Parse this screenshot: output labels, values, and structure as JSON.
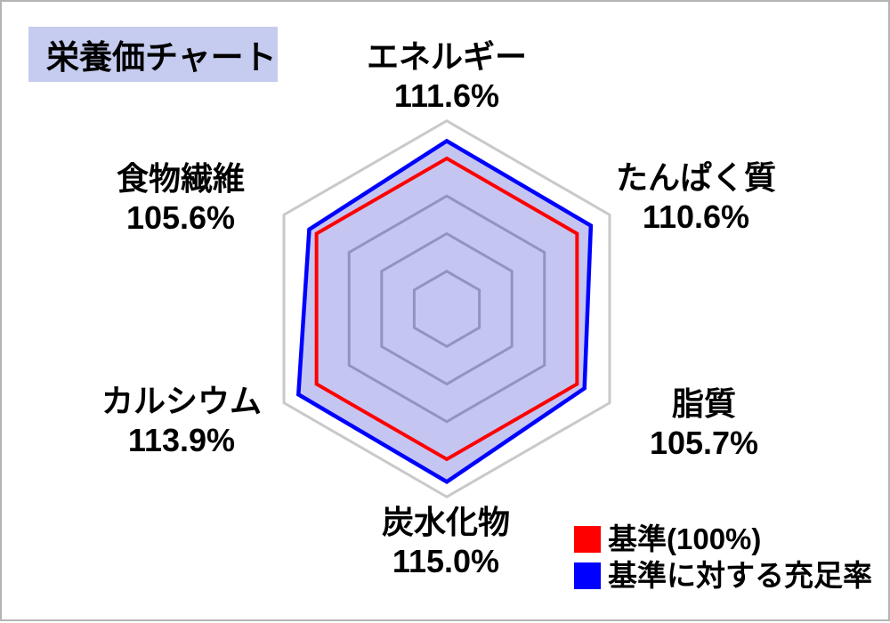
{
  "title": "栄養価チャート",
  "colors": {
    "title_bg": "#c6ccef",
    "fill": "#c5c5f2",
    "grid_inner": "#9393c0",
    "grid_outer": "#c9c9c9",
    "standard": "#ff0000",
    "fulfillment": "#0000ff"
  },
  "labels": [
    {
      "name": "エネルギー",
      "value": "111.6%"
    },
    {
      "name": "たんぱく質",
      "value": "110.6%"
    },
    {
      "name": "脂質",
      "value": "105.7%"
    },
    {
      "name": "炭水化物",
      "value": "115.0%"
    },
    {
      "name": "カルシウム",
      "value": "113.9%"
    },
    {
      "name": "食物繊維",
      "value": "105.6%"
    }
  ],
  "legend": {
    "items": [
      {
        "label": "基準(100%)",
        "color": "#ff0000"
      },
      {
        "label": "基準に対する充足率",
        "color": "#0000ff"
      }
    ]
  },
  "chart_data": {
    "type": "radar",
    "title": "栄養価チャート",
    "categories": [
      "エネルギー",
      "たんぱく質",
      "脂質",
      "炭水化物",
      "カルシウム",
      "食物繊維"
    ],
    "series": [
      {
        "name": "基準(100%)",
        "values": [
          100,
          100,
          100,
          100,
          100,
          100
        ],
        "color": "#ff0000"
      },
      {
        "name": "基準に対する充足率",
        "values": [
          111.6,
          110.6,
          105.7,
          115.0,
          113.9,
          105.6
        ],
        "color": "#0000ff"
      }
    ],
    "data_labels": [
      "111.6%",
      "110.6%",
      "105.7%",
      "115.0%",
      "113.9%",
      "105.6%"
    ],
    "rmin": 0,
    "rmax": 125,
    "grid_step": 25,
    "grid": true,
    "fill_color": "#c5c5f2",
    "legend_position": "bottom-right"
  }
}
